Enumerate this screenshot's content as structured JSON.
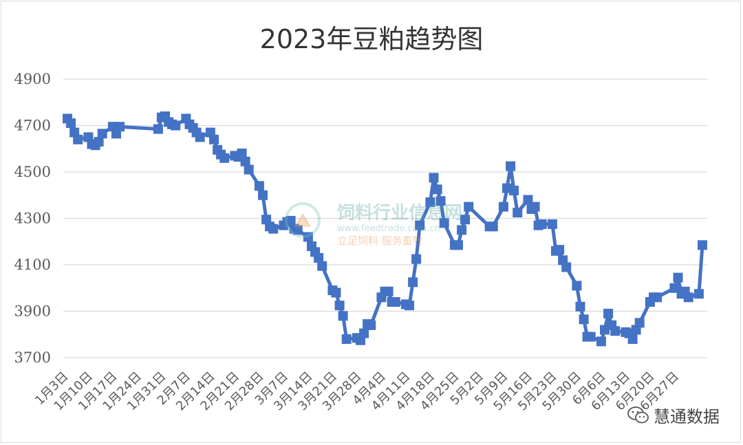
{
  "chart_data": {
    "type": "line",
    "title": "2023年豆粕趋势图",
    "y_ticks": [
      "4900",
      "4700",
      "4500",
      "4300",
      "4100",
      "3900",
      "3700"
    ],
    "ylim": [
      3700,
      4900
    ],
    "grid": true,
    "x_tick_labels": [
      "1月3日",
      "1月10日",
      "1月17日",
      "1月24日",
      "1月31日",
      "2月7日",
      "2月14日",
      "2月21日",
      "2月28日",
      "3月7日",
      "3月14日",
      "3月21日",
      "3月28日",
      "4月4日",
      "4月11日",
      "4月18日",
      "4月25日",
      "5月2日",
      "5月9日",
      "5月16日",
      "5月23日",
      "5月30日",
      "6月6日",
      "6月13日",
      "6月20日",
      "6月27日"
    ],
    "series": [
      {
        "color": "#4472c4",
        "marker": "square",
        "points": [
          [
            "1月3日",
            4730
          ],
          [
            "1月4日",
            4710
          ],
          [
            "1月5日",
            4670
          ],
          [
            "1月6日",
            4640
          ],
          [
            "1月9日",
            4650
          ],
          [
            "1月10日",
            4620
          ],
          [
            "1月11日",
            4615
          ],
          [
            "1月12日",
            4630
          ],
          [
            "1月13日",
            4665
          ],
          [
            "1月16日",
            4695
          ],
          [
            "1月17日",
            4665
          ],
          [
            "1月18日",
            4695
          ],
          [
            "1月29日",
            4685
          ],
          [
            "1月30日",
            4735
          ],
          [
            "1月31日",
            4740
          ],
          [
            "2月1日",
            4715
          ],
          [
            "2月2日",
            4705
          ],
          [
            "2月3日",
            4700
          ],
          [
            "2月6日",
            4730
          ],
          [
            "2月7日",
            4705
          ],
          [
            "2月8日",
            4690
          ],
          [
            "2月9日",
            4670
          ],
          [
            "2月10日",
            4650
          ],
          [
            "2月13日",
            4670
          ],
          [
            "2月14日",
            4640
          ],
          [
            "2月15日",
            4595
          ],
          [
            "2月16日",
            4575
          ],
          [
            "2月17日",
            4560
          ],
          [
            "2月20日",
            4570
          ],
          [
            "2月21日",
            4565
          ],
          [
            "2月22日",
            4580
          ],
          [
            "2月23日",
            4545
          ],
          [
            "2月24日",
            4510
          ],
          [
            "2月27日",
            4440
          ],
          [
            "2月28日",
            4400
          ],
          [
            "3月1日",
            4295
          ],
          [
            "3月2日",
            4265
          ],
          [
            "3月3日",
            4255
          ],
          [
            "3月6日",
            4270
          ],
          [
            "3月7日",
            4285
          ],
          [
            "3月8日",
            4290
          ],
          [
            "3月9日",
            4255
          ],
          [
            "3月10日",
            4250
          ],
          [
            "3月13日",
            4220
          ],
          [
            "3月14日",
            4180
          ],
          [
            "3月15日",
            4155
          ],
          [
            "3月16日",
            4130
          ],
          [
            "3月17日",
            4095
          ],
          [
            "3月20日",
            3990
          ],
          [
            "3月21日",
            3980
          ],
          [
            "3月22日",
            3925
          ],
          [
            "3月23日",
            3880
          ],
          [
            "3月24日",
            3780
          ],
          [
            "3月27日",
            3785
          ],
          [
            "3月28日",
            3775
          ],
          [
            "3月29日",
            3805
          ],
          [
            "3月30日",
            3845
          ],
          [
            "3月31日",
            3840
          ],
          [
            "4月3日",
            3960
          ],
          [
            "4月4日",
            3985
          ],
          [
            "4月5日",
            3985
          ],
          [
            "4月6日",
            3940
          ],
          [
            "4月7日",
            3940
          ],
          [
            "4月10日",
            3930
          ],
          [
            "4月11日",
            3925
          ],
          [
            "4月12日",
            4025
          ],
          [
            "4月13日",
            4125
          ],
          [
            "4月14日",
            4270
          ],
          [
            "4月17日",
            4370
          ],
          [
            "4月18日",
            4475
          ],
          [
            "4月19日",
            4425
          ],
          [
            "4月20日",
            4375
          ],
          [
            "4月21日",
            4280
          ],
          [
            "4月24日",
            4185
          ],
          [
            "4月25日",
            4185
          ],
          [
            "4月26日",
            4250
          ],
          [
            "4月27日",
            4295
          ],
          [
            "4月28日",
            4350
          ],
          [
            "5月4日",
            4265
          ],
          [
            "5月5日",
            4265
          ],
          [
            "5月8日",
            4350
          ],
          [
            "5月9日",
            4430
          ],
          [
            "5月10日",
            4525
          ],
          [
            "5月11日",
            4420
          ],
          [
            "5月12日",
            4325
          ],
          [
            "5月15日",
            4380
          ],
          [
            "5月16日",
            4340
          ],
          [
            "5月17日",
            4350
          ],
          [
            "5月18日",
            4270
          ],
          [
            "5月19日",
            4275
          ],
          [
            "5月22日",
            4275
          ],
          [
            "5月23日",
            4160
          ],
          [
            "5月24日",
            4165
          ],
          [
            "5月25日",
            4120
          ],
          [
            "5月26日",
            4090
          ],
          [
            "5月29日",
            4010
          ],
          [
            "5月30日",
            3920
          ],
          [
            "5月31日",
            3865
          ],
          [
            "6月1日",
            3790
          ],
          [
            "6月2日",
            3790
          ],
          [
            "6月5日",
            3770
          ],
          [
            "6月6日",
            3820
          ],
          [
            "6月7日",
            3890
          ],
          [
            "6月8日",
            3840
          ],
          [
            "6月9日",
            3815
          ],
          [
            "6月12日",
            3810
          ],
          [
            "6月13日",
            3805
          ],
          [
            "6月14日",
            3780
          ],
          [
            "6月15日",
            3820
          ],
          [
            "6月16日",
            3850
          ],
          [
            "6月19日",
            3940
          ],
          [
            "6月20日",
            3960
          ],
          [
            "6月21日",
            3960
          ],
          [
            "6月26日",
            4000
          ],
          [
            "6月27日",
            4045
          ],
          [
            "6月28日",
            3975
          ],
          [
            "6月29日",
            3985
          ],
          [
            "6月30日",
            3960
          ],
          [
            "7月3日",
            3975
          ],
          [
            "7月4日",
            4185
          ]
        ]
      }
    ]
  },
  "watermark": {
    "title": "饲料行业信息网",
    "url": "www.feedtrade.com.cn",
    "slogan": "立足饲料 服务畜牧",
    "logo_icon": "feedtrade-logo-icon"
  },
  "source_mark": {
    "icon": "wechat-icon",
    "text": "慧通数据"
  },
  "colors": {
    "series": "#4472c4",
    "grid": "#d9d9d9",
    "axis_text": "#595959",
    "title_text": "#333333"
  }
}
